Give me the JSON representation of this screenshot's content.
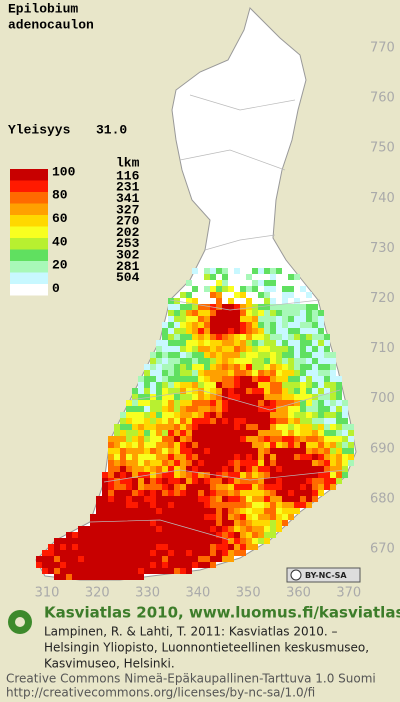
{
  "title": {
    "line1": "Epilobium",
    "line2": "adenocaulon"
  },
  "frequency": {
    "label": "Yleisyys",
    "value": "31.0"
  },
  "legend": {
    "class_labels": [
      "100",
      "80",
      "60",
      "40",
      "20",
      "0"
    ],
    "count_header": "lkm",
    "counts": [
      "116",
      "231",
      "341",
      "327",
      "270",
      "202",
      "253",
      "302",
      "281",
      "504"
    ],
    "colors": [
      "#c80000",
      "#ff1a00",
      "#ff6a00",
      "#ffa000",
      "#ffd800",
      "#f8ff20",
      "#b8f030",
      "#60e060",
      "#a8f8b8",
      "#c8f8ff",
      "#ffffff"
    ]
  },
  "grid": {
    "y_labels": [
      770,
      760,
      750,
      740,
      730,
      720,
      710,
      700,
      690,
      680,
      670
    ],
    "x_labels": [
      310,
      320,
      330,
      340,
      350,
      360,
      370
    ]
  },
  "license_badge": "BY-NC-SA",
  "footer": {
    "heading": "Kasviatlas 2010, www.luomus.fi/kasviatlas",
    "citation": [
      "Lampinen, R. & Lahti, T. 2011: Kasviatlas 2010. –",
      "Helsingin Yliopisto, Luonnontieteellinen keskusmuseo,",
      "Kasvimuseo, Helsinki."
    ],
    "license": [
      "Creative Commons Nimeä-Epäkaupallinen-Tarttuva 1.0 Suomi",
      "http://creativecommons.org/licenses/by-nc-sa/1.0/fi"
    ]
  }
}
